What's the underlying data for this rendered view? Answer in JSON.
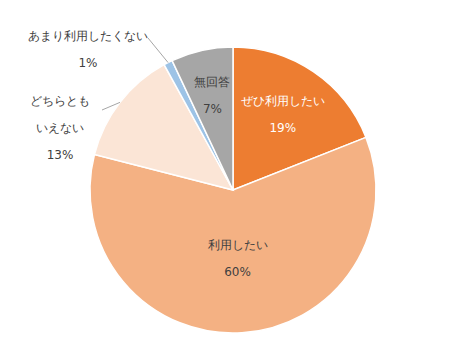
{
  "chart_data": {
    "type": "pie",
    "categories": [
      "ぜひ利用したい",
      "利用したい",
      "どちらともいえない",
      "あまり利用したくない",
      "無回答"
    ],
    "values": [
      19,
      60,
      13,
      1,
      7
    ],
    "value_labels": [
      "19%",
      "60%",
      "13%",
      "1%",
      "7%"
    ],
    "colors": [
      "#ed7d31",
      "#f4b183",
      "#fbe5d6",
      "#9dc3e6",
      "#a6a6a6"
    ],
    "data_labels": true
  }
}
